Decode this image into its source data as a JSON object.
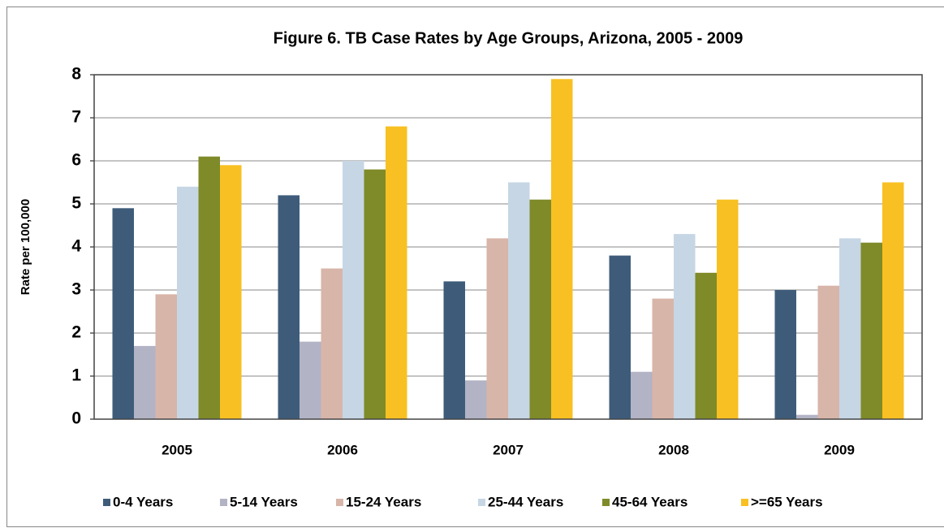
{
  "chart_data": {
    "type": "bar",
    "title": "Figure 6. TB Case Rates by Age Groups, Arizona, 2005 - 2009",
    "y_label": "Rate per 100,000",
    "categories": [
      "2005",
      "2006",
      "2007",
      "2008",
      "2009"
    ],
    "series": [
      {
        "name": "0-4 Years",
        "color": "#3e5c7a",
        "values": [
          4.9,
          5.2,
          3.2,
          3.8,
          3.0
        ]
      },
      {
        "name": "5-14 Years",
        "color": "#b2b3c5",
        "values": [
          1.7,
          1.8,
          0.9,
          1.1,
          0.1
        ]
      },
      {
        "name": "15-24 Years",
        "color": "#d8b5a9",
        "values": [
          2.9,
          3.5,
          4.2,
          2.8,
          3.1
        ]
      },
      {
        "name": "25-44 Years",
        "color": "#c6d6e4",
        "values": [
          5.4,
          6.0,
          5.5,
          4.3,
          4.2
        ]
      },
      {
        "name": "45-64 Years",
        "color": "#7f8a29",
        "values": [
          6.1,
          5.8,
          5.1,
          3.4,
          4.1
        ]
      },
      {
        "name": ">=65 Years",
        "color": "#f8c022",
        "values": [
          5.9,
          6.8,
          7.9,
          5.1,
          5.5
        ]
      }
    ],
    "ylim": [
      0,
      8
    ],
    "yticks": [
      0,
      1,
      2,
      3,
      4,
      5,
      6,
      7,
      8
    ],
    "grid": true,
    "legend": "bottom"
  }
}
